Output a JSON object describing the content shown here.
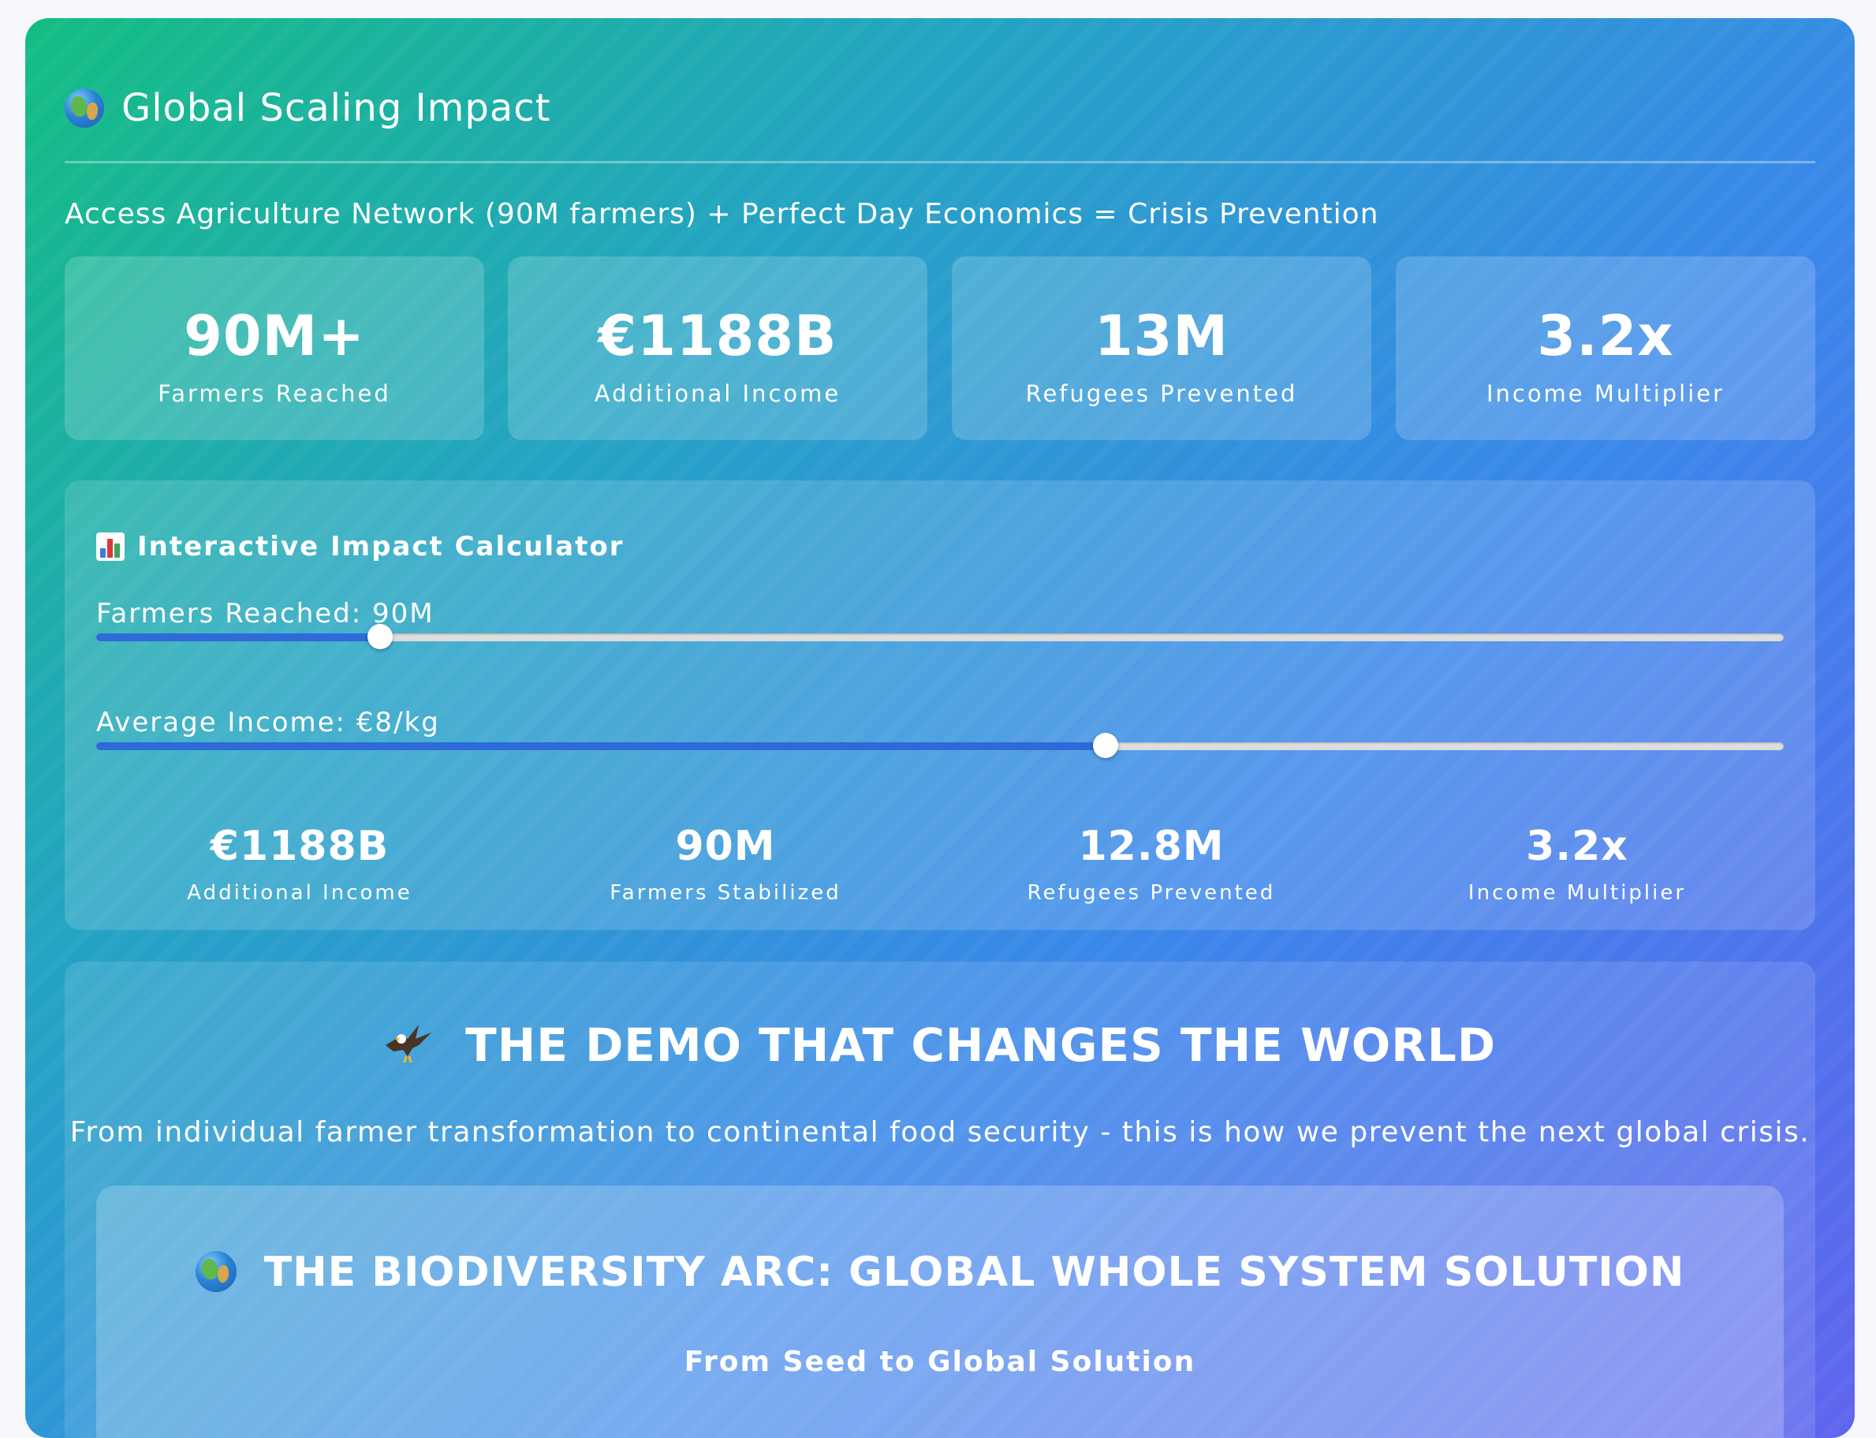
{
  "header": {
    "title": "Global Scaling Impact",
    "icon": "globe-icon"
  },
  "subtitle": "Access Agriculture Network (90M farmers) + Perfect Day Economics = Crisis Prevention",
  "stats": [
    {
      "value": "90M+",
      "label": "Farmers Reached"
    },
    {
      "value": "€1188B",
      "label": "Additional Income"
    },
    {
      "value": "13M",
      "label": "Refugees Prevented"
    },
    {
      "value": "3.2x",
      "label": "Income Multiplier"
    }
  ],
  "calculator": {
    "title": "Interactive Impact Calculator",
    "icon": "bar-chart-icon",
    "sliders": [
      {
        "label": "Farmers Reached: 90M",
        "fraction": 0.168
      },
      {
        "label": "Average Income: €8/kg",
        "fraction": 0.598
      }
    ],
    "results": [
      {
        "value": "€1188B",
        "label": "Additional Income"
      },
      {
        "value": "90M",
        "label": "Farmers Stabilized"
      },
      {
        "value": "12.8M",
        "label": "Refugees Prevented"
      },
      {
        "value": "3.2x",
        "label": "Income Multiplier"
      }
    ]
  },
  "demo": {
    "title": "THE DEMO THAT CHANGES THE WORLD",
    "icon": "eagle-icon",
    "subtitle": "From individual farmer transformation to continental food security - this is how we prevent the next global crisis."
  },
  "arc": {
    "title": "THE BIODIVERSITY ARC: GLOBAL WHOLE SYSTEM SOLUTION",
    "icon": "globe-icon",
    "subtitle": "From Seed to Global Solution"
  },
  "colors": {
    "gradient_start": "#13bd82",
    "gradient_mid": "#3a87ea",
    "gradient_end": "#5f64ee",
    "slider_fill": "#2e6ad8",
    "slider_track": "#dedede"
  }
}
